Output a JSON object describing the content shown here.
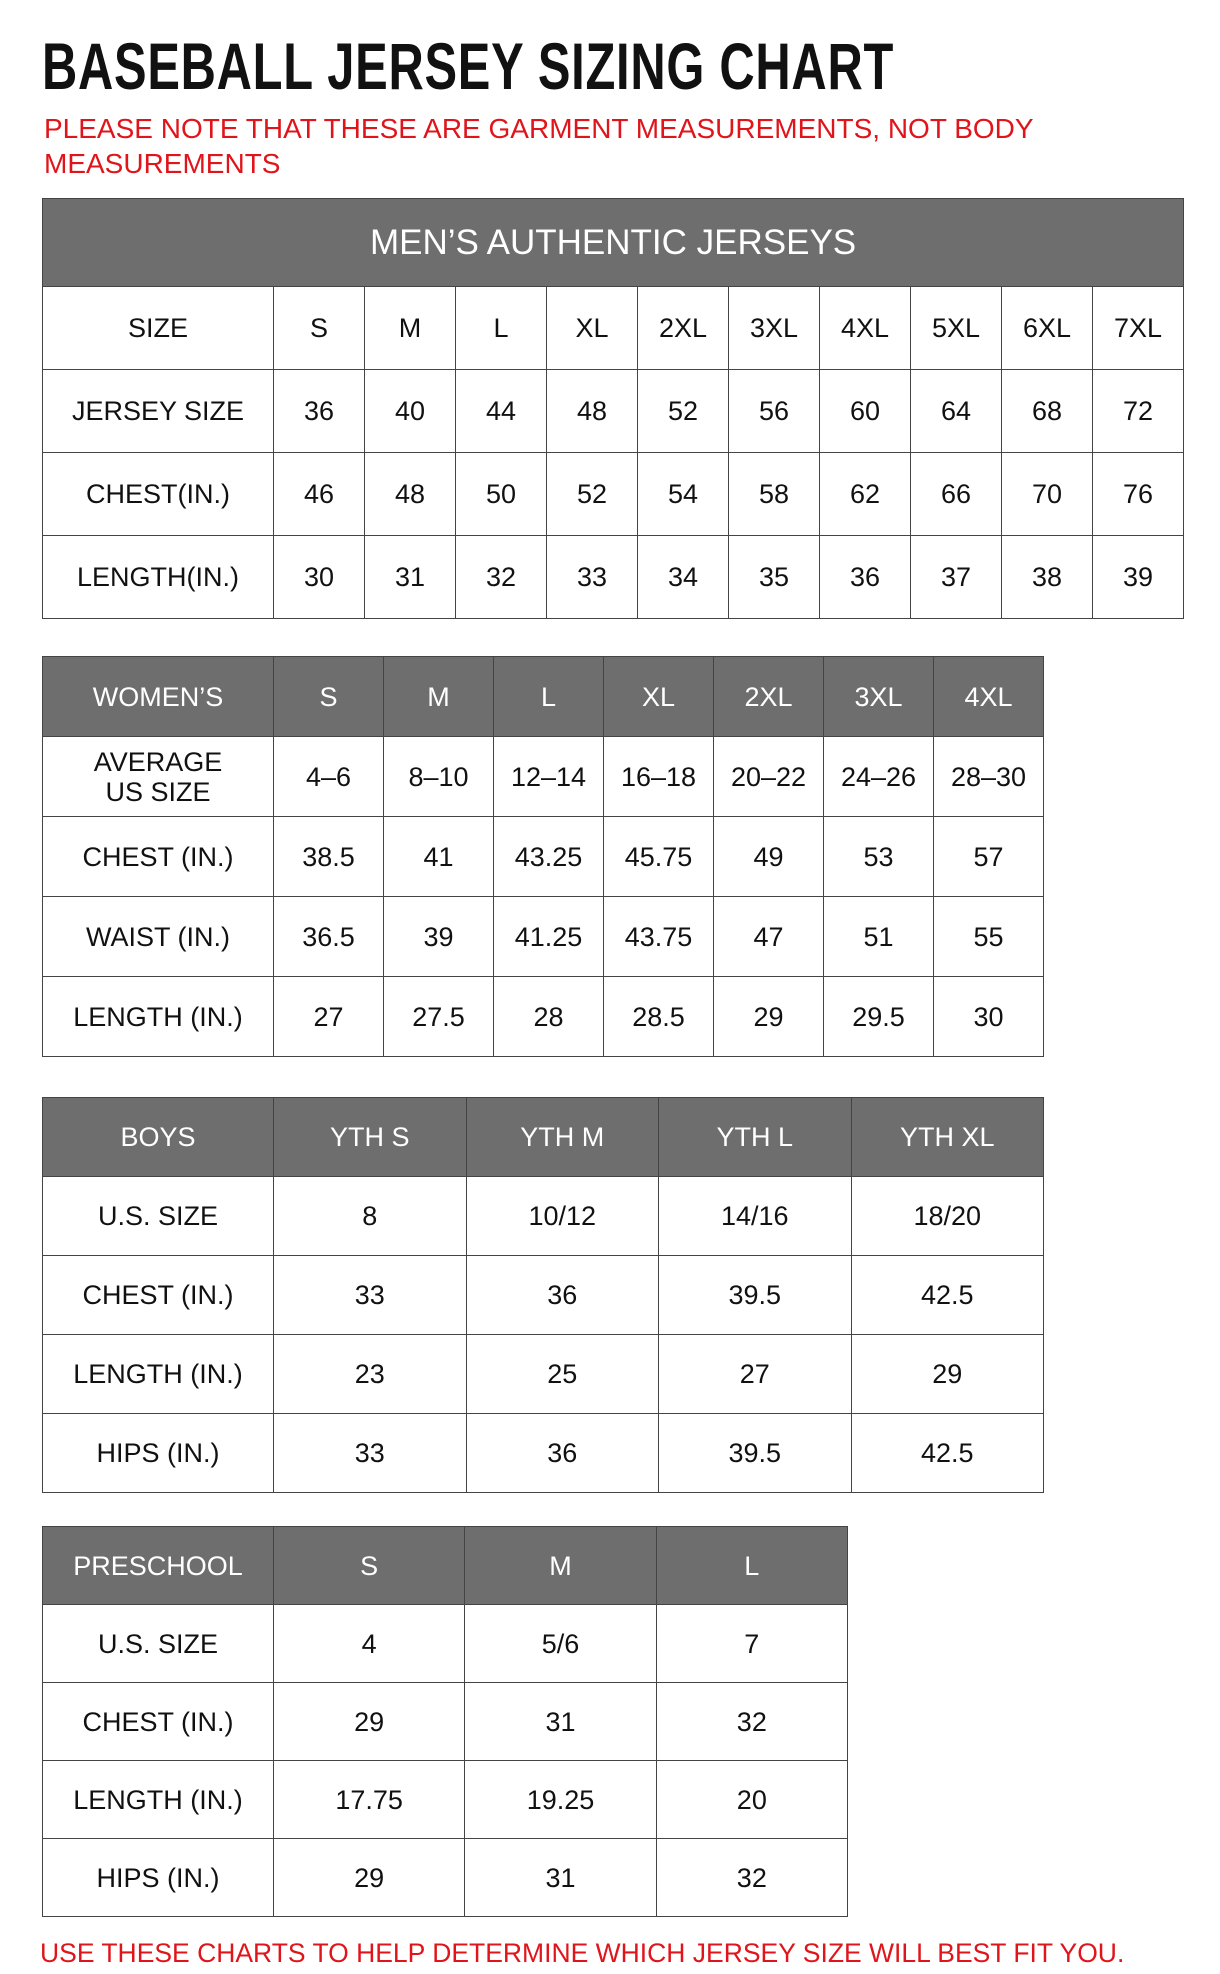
{
  "title": "BASEBALL JERSEY SIZING CHART",
  "note": "PLEASE NOTE THAT THESE ARE GARMENT MEASUREMENTS, NOT BODY MEASUREMENTS",
  "tables": [
    {
      "title": "MEN’S AUTHENTIC JERSEYS",
      "header": [
        "SIZE",
        "S",
        "M",
        "L",
        "XL",
        "2XL",
        "3XL",
        "4XL",
        "5XL",
        "6XL",
        "7XL"
      ],
      "rows": [
        [
          "JERSEY SIZE",
          "36",
          "40",
          "44",
          "48",
          "52",
          "56",
          "60",
          "64",
          "68",
          "72"
        ],
        [
          "CHEST(IN.)",
          "46",
          "48",
          "50",
          "52",
          "54",
          "58",
          "62",
          "66",
          "70",
          "76"
        ],
        [
          "LENGTH(IN.)",
          "30",
          "31",
          "32",
          "33",
          "34",
          "35",
          "36",
          "37",
          "38",
          "39"
        ]
      ]
    },
    {
      "header": [
        "WOMEN’S",
        "S",
        "M",
        "L",
        "XL",
        "2XL",
        "3XL",
        "4XL"
      ],
      "rows": [
        [
          "AVERAGE\nUS SIZE",
          "4–6",
          "8–10",
          "12–14",
          "16–18",
          "20–22",
          "24–26",
          "28–30"
        ],
        [
          "CHEST (IN.)",
          "38.5",
          "41",
          "43.25",
          "45.75",
          "49",
          "53",
          "57"
        ],
        [
          "WAIST (IN.)",
          "36.5",
          "39",
          "41.25",
          "43.75",
          "47",
          "51",
          "55"
        ],
        [
          "LENGTH (IN.)",
          "27",
          "27.5",
          "28",
          "28.5",
          "29",
          "29.5",
          "30"
        ]
      ]
    },
    {
      "header": [
        "BOYS",
        "YTH S",
        "YTH M",
        "YTH L",
        "YTH XL"
      ],
      "rows": [
        [
          "U.S. SIZE",
          "8",
          "10/12",
          "14/16",
          "18/20"
        ],
        [
          "CHEST (IN.)",
          "33",
          "36",
          "39.5",
          "42.5"
        ],
        [
          "LENGTH (IN.)",
          "23",
          "25",
          "27",
          "29"
        ],
        [
          "HIPS (IN.)",
          "33",
          "36",
          "39.5",
          "42.5"
        ]
      ]
    },
    {
      "header": [
        "PRESCHOOL",
        "S",
        "M",
        "L"
      ],
      "rows": [
        [
          "U.S. SIZE",
          "4",
          "5/6",
          "7"
        ],
        [
          "CHEST (IN.)",
          "29",
          "31",
          "32"
        ],
        [
          "LENGTH (IN.)",
          "17.75",
          "19.25",
          "20"
        ],
        [
          "HIPS (IN.)",
          "29",
          "31",
          "32"
        ]
      ]
    }
  ],
  "footer": "USE THESE CHARTS TO HELP DETERMINE WHICH JERSEY SIZE WILL BEST FIT YOU."
}
